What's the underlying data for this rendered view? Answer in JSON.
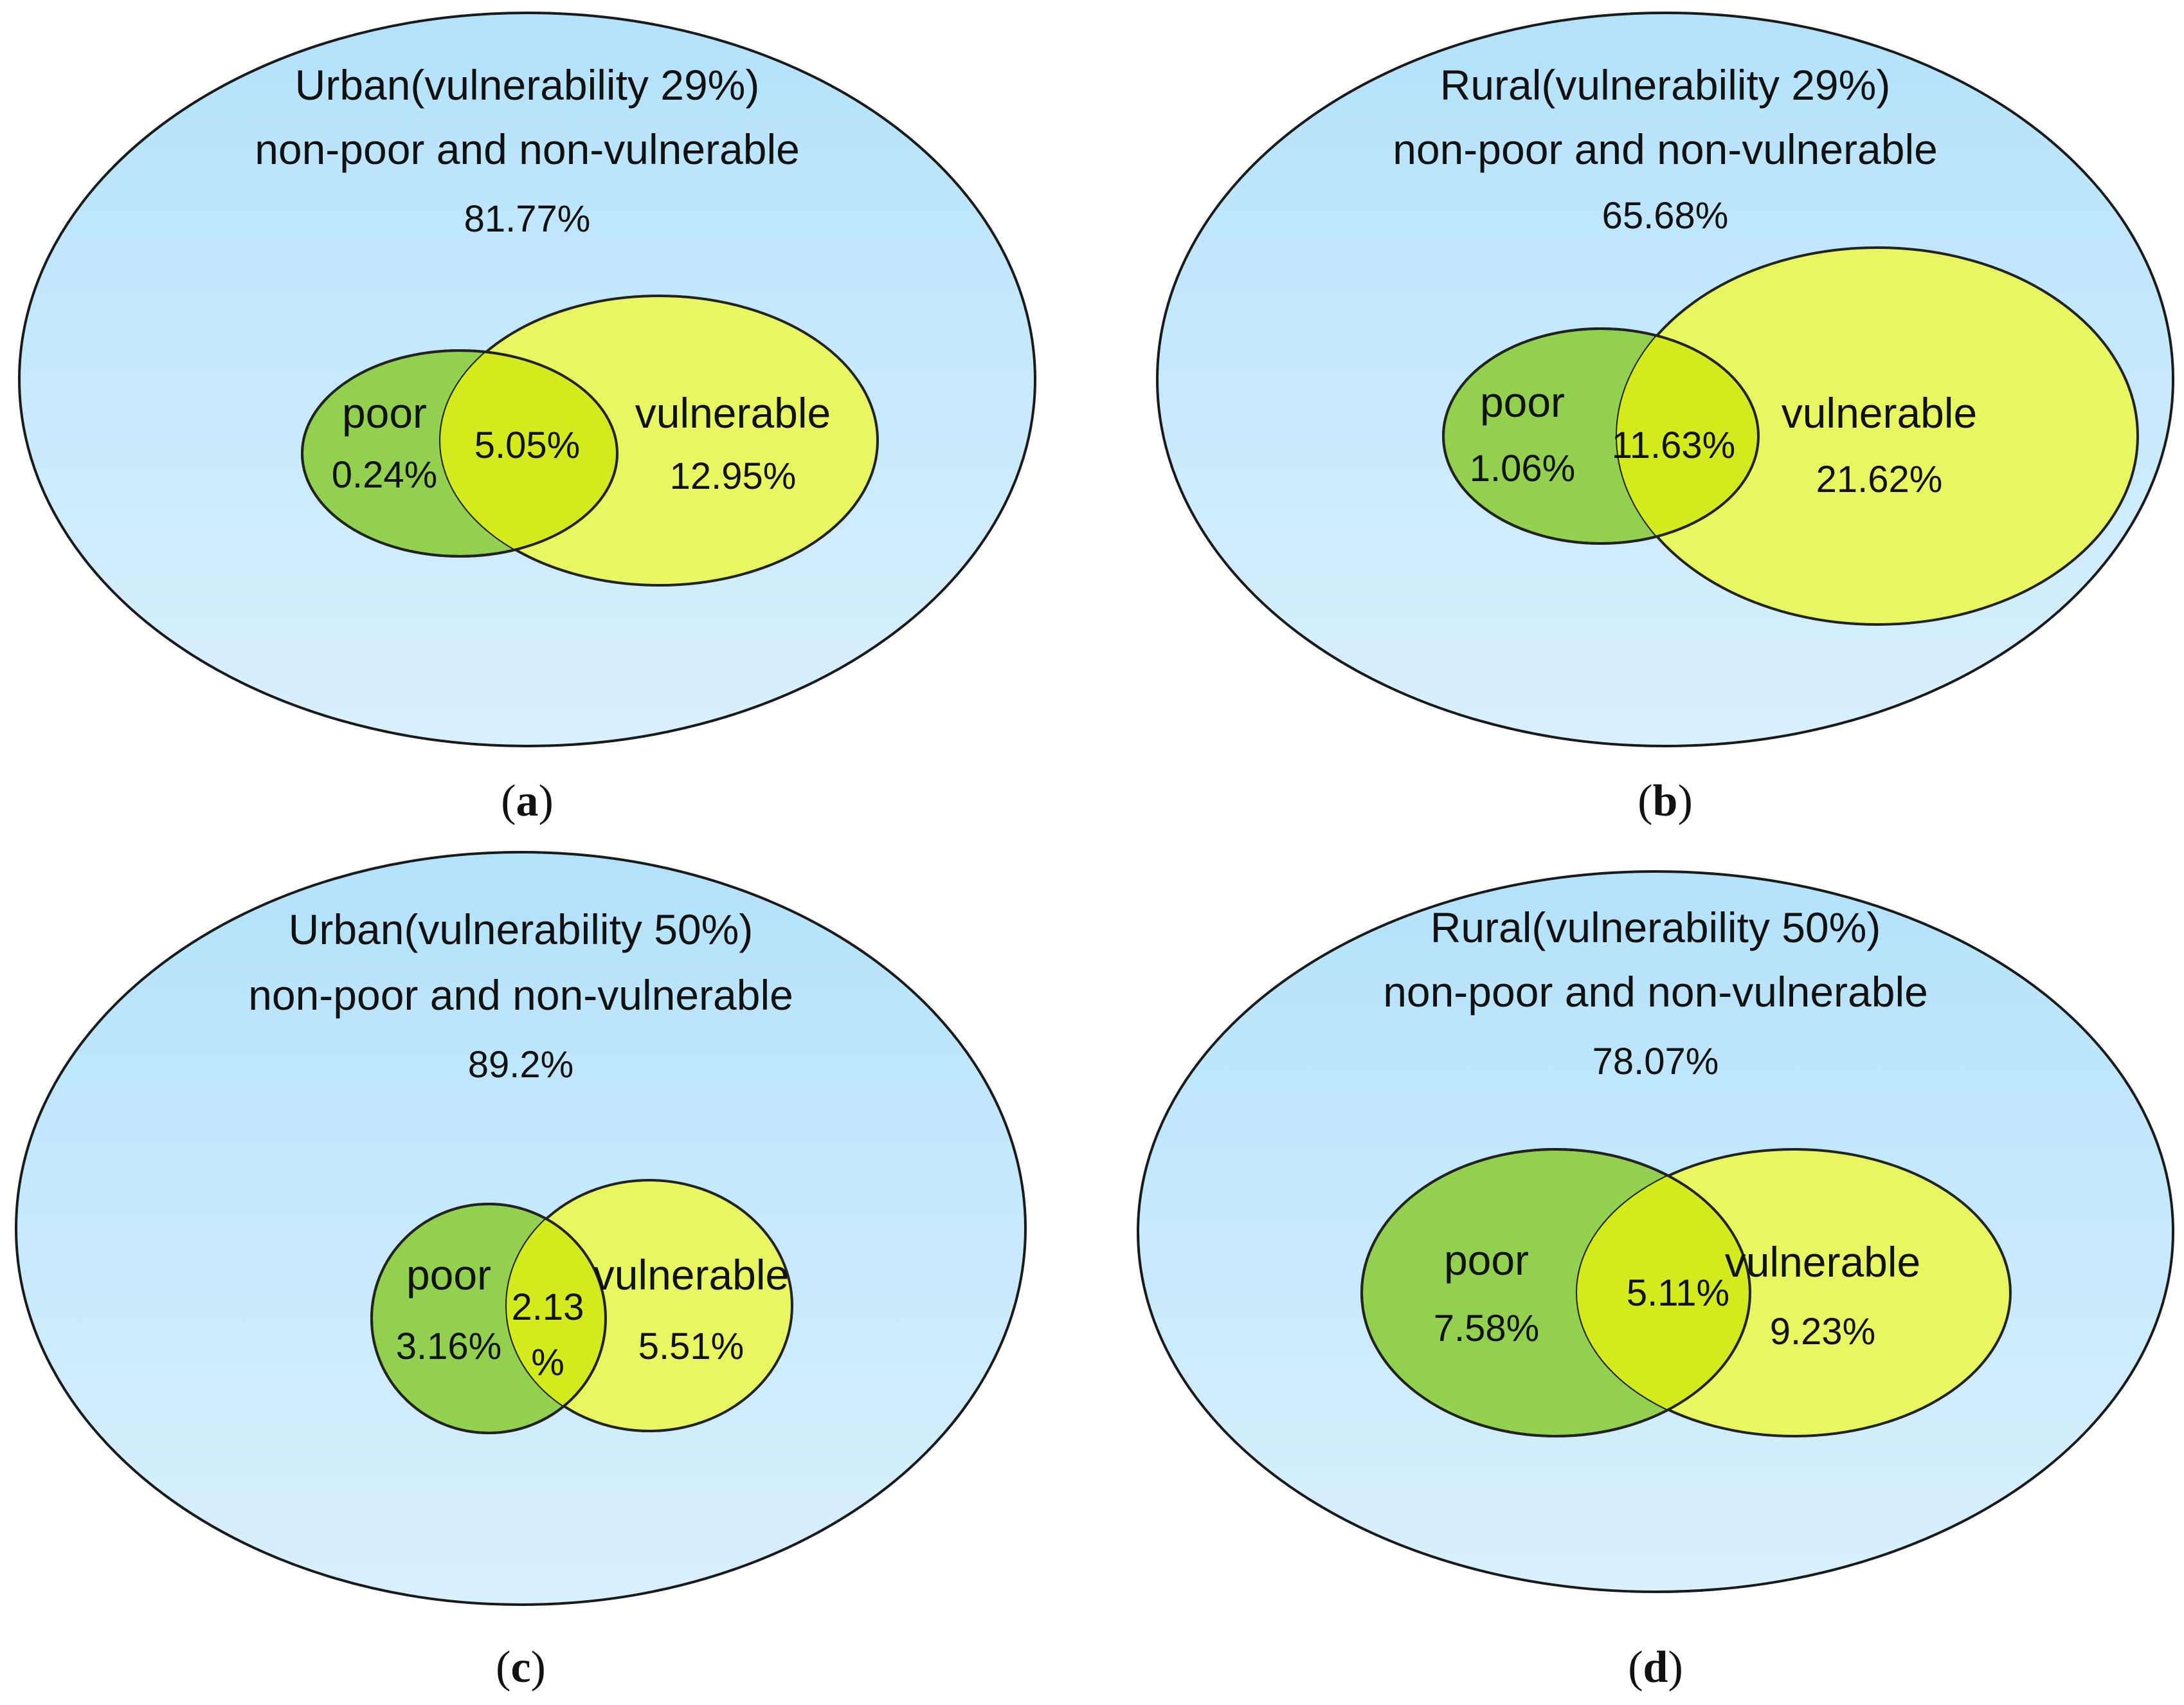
{
  "colors": {
    "outer_top": "#b3e2fb",
    "outer_bottom": "#d9f0fd",
    "poor": "#92d050",
    "vulnerable": "#e6f761",
    "overlap": "#d1eb1f",
    "stroke": "#1a1a1a"
  },
  "panels": {
    "a": {
      "title": "Urban(vulnerability 29%)",
      "subtitle": "non-poor and non-vulnerable",
      "rest_pct": "81.77%",
      "poor_label": "poor",
      "poor_pct": "0.24%",
      "overlap_pct": "5.05%",
      "vuln_label": "vulnerable",
      "vuln_pct": "12.95%",
      "caption_open": "(",
      "caption_letter": "a",
      "caption_close": ")"
    },
    "b": {
      "title": "Rural(vulnerability 29%)",
      "subtitle": "non-poor and non-vulnerable",
      "rest_pct": "65.68%",
      "poor_label": "poor",
      "poor_pct": "1.06%",
      "overlap_pct": "11.63%",
      "vuln_label": "vulnerable",
      "vuln_pct": "21.62%",
      "caption_open": "(",
      "caption_letter": "b",
      "caption_close": ")"
    },
    "c": {
      "title": "Urban(vulnerability 50%)",
      "subtitle": "non-poor and non-vulnerable",
      "rest_pct": "89.2%",
      "poor_label": "poor",
      "poor_pct": "3.16%",
      "overlap_pct_line1": "2.13",
      "overlap_pct_line2": "%",
      "vuln_label": "vulnerable",
      "vuln_pct": "5.51%",
      "caption_open": "(",
      "caption_letter": "c",
      "caption_close": ")"
    },
    "d": {
      "title": "Rural(vulnerability 50%)",
      "subtitle": "non-poor and non-vulnerable",
      "rest_pct": "78.07%",
      "poor_label": "poor",
      "poor_pct": "7.58%",
      "overlap_pct": "5.11%",
      "vuln_label": "vulnerable",
      "vuln_pct": "9.23%",
      "caption_open": "(",
      "caption_letter": "d",
      "caption_close": ")"
    }
  }
}
